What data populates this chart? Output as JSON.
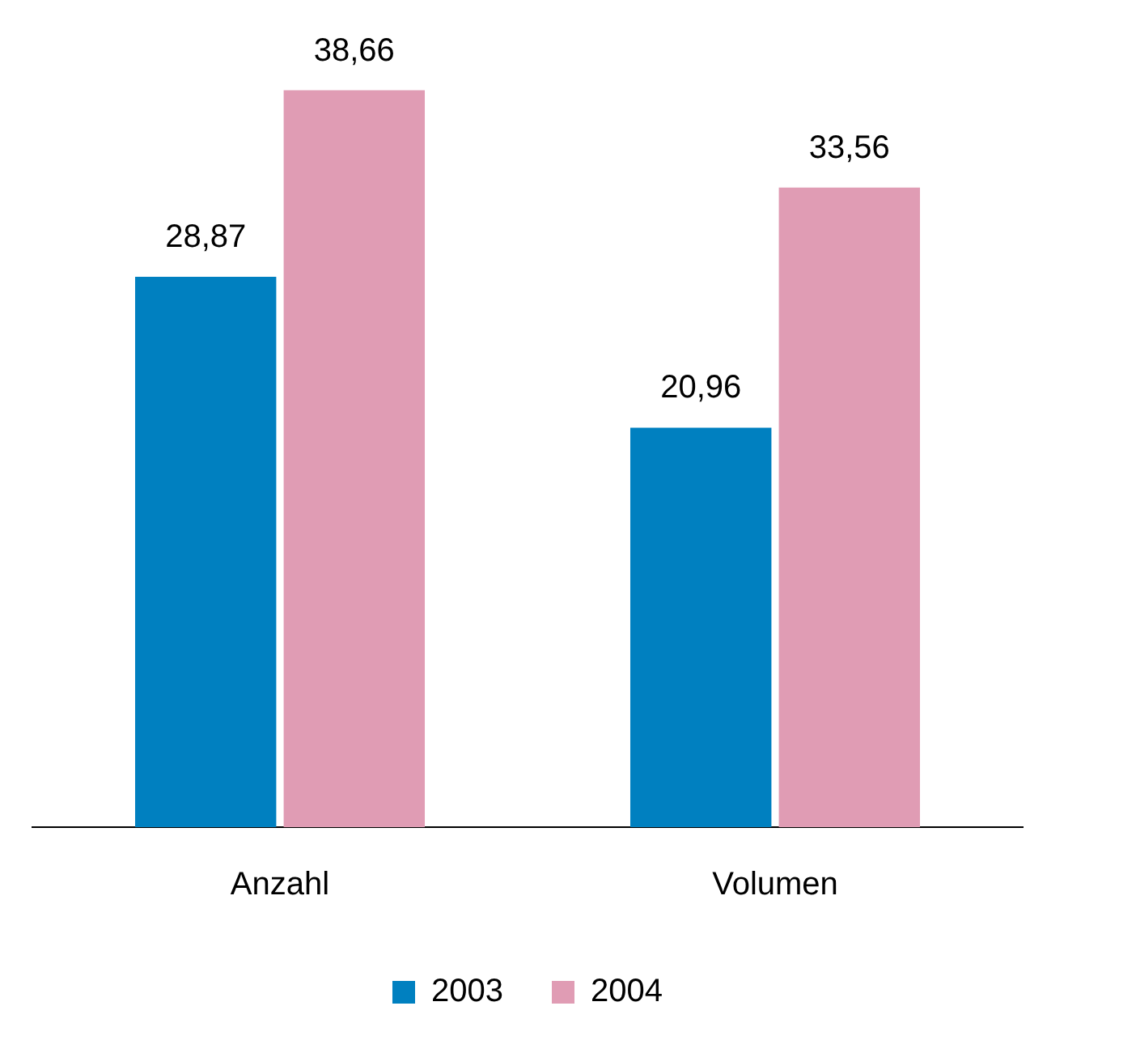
{
  "chart_data": {
    "type": "bar",
    "categories": [
      "Anzahl",
      "Volumen"
    ],
    "series": [
      {
        "name": "2003",
        "color": "#0080c0",
        "values": [
          28.87,
          20.96
        ],
        "value_labels": [
          "28,87",
          "20,96"
        ]
      },
      {
        "name": "2004",
        "color": "#e09cb4",
        "values": [
          38.66,
          33.56
        ],
        "value_labels": [
          "38,66",
          "33,56"
        ]
      }
    ],
    "legend": "bottom",
    "grid": false,
    "tick_labels": "x"
  }
}
